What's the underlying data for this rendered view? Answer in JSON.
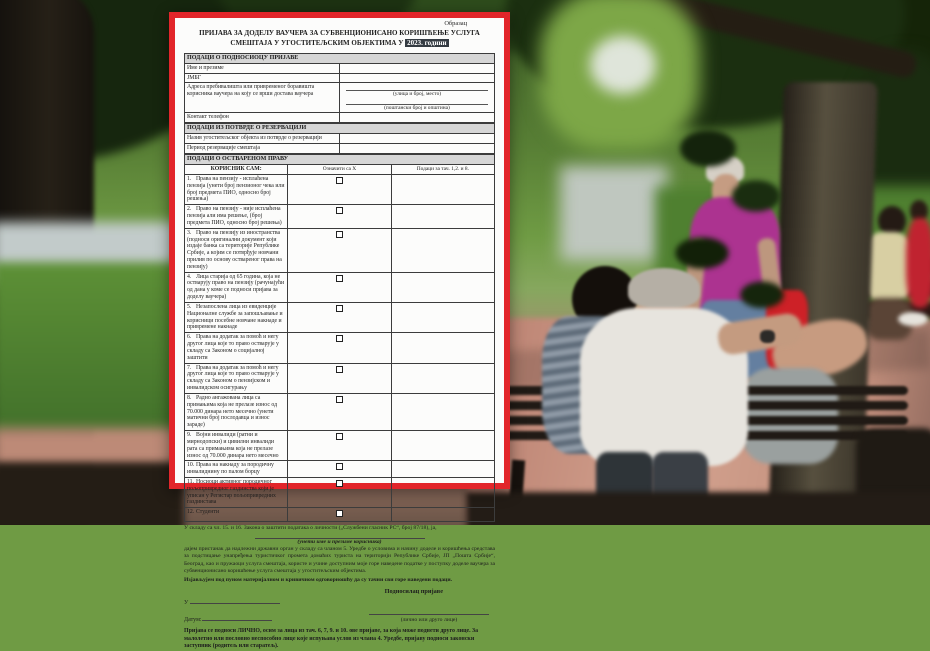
{
  "image_alt": "Park scene with people on benches; a Serbian voucher application form framed in red is overlaid",
  "colors": {
    "form_border_red": "#e2252a",
    "year_highlight_bg": "#343b42",
    "section_header_bg": "#d6d6d6"
  },
  "form": {
    "corner_label": "Образац",
    "title": "ПРИЈАВА ЗА ДОДЕЛУ ВАУЧЕРА ЗА СУБВЕНЦИОНИСАНО КОРИШЋЕЊЕ УСЛУГА СМЕШТАЈА У УГОСТИТЕЉСКИМ ОБЈЕКТИМА У",
    "title_year": "2023. години",
    "applicant": {
      "header": "ПОДАЦИ О ПОДНОСИОЦУ ПРИЈАВЕ",
      "name_label": "Име и презиме",
      "jmbg_label": "ЈМБГ",
      "address_label": "Адреса пребивалишта или привременог боравишта корисника ваучера на коју се врши достава ваучера",
      "address_hint_street": "(улица и број, место)",
      "address_hint_postal": "(поштански број и општина)",
      "phone_label": "Контакт телефон"
    },
    "reservation": {
      "header": "ПОДАЦИ ИЗ ПОТВРДЕ О РЕЗЕРВАЦИЈИ",
      "object_label": "Назив угоститељског објекта из потврде о резервацији",
      "period_label": "Период резервације смештаја"
    },
    "rights": {
      "header": "ПОДАЦИ О ОСТВАРЕНОМ ПРАВУ",
      "col_user": "КОРИСНИК САМ:",
      "col_mark": "Означити са X",
      "col_data": "Подаци за тач. 1,2. и 8.",
      "rows": [
        {
          "num": "1.",
          "text": "Права на пензију - исплаћена пензија (унети број пензионог чека или број предмета ПИО, односно број решења)"
        },
        {
          "num": "2.",
          "text": "Право на пензију - није исплаћена пензија али има решење, (број предмета ПИО, односно број решења)"
        },
        {
          "num": "3.",
          "text": "Право на пензију из иностранства (подноси оригинални документ који издаје банка са територије Републике Србије, а којим се потврђује новчани прилив по основу оствареног права на пензију)"
        },
        {
          "num": "4.",
          "text": "Лица старија од 65 година, која не остварују право на пензију (рачунајући од дана у коме се подноси пријава за доделу ваучера)"
        },
        {
          "num": "5.",
          "text": "Незапослена лица из евиденције Националне службе за запошљавање и корисници посебне новчане накнаде и привремене накнаде"
        },
        {
          "num": "6.",
          "text": "Права на додатак за помоћ и негу другог лица које то право остварује у складу са Законом о социјалној заштити"
        },
        {
          "num": "7.",
          "text": "Права на додатак за помоћ и негу другог лица које то право остварује у складу са Законом о пензијском и инвалидском осигурању"
        },
        {
          "num": "8.",
          "text": "Радно ангажована лица са примањима која не прелазе износ од 70.000 динара нето месечно (унети матични број послодавца и износ зараде)"
        },
        {
          "num": "9.",
          "text": "Војни инвалиди (ратни и мирнодопски) и цивилни инвалиди рата са примањима која не прелазе износ од 70.000 динара нето месечно"
        },
        {
          "num": "10.",
          "text": "Права на накнаду за породичну инвалиднину по палом борцу"
        },
        {
          "num": "11.",
          "text": "Носиоци активног породичног пољопривредног газдинства који је уписан у Регистар пољопривредних газдинстава"
        },
        {
          "num": "12.",
          "text": "Студенти"
        }
      ]
    },
    "consent": {
      "law_line": "У складу са чл. 15. и 16. Закона о заштити података о личности („Службени гласник РС“, број 87/18), ја,",
      "name_caption": "(унети име и презиме корисника)",
      "paragraph": "дајем пристанак да надлежни државни орган у складу са чланом 5. Уредбе о условима и начину доделе и коришћења средстава за подстицање унапређења туристичког промета домаћих туриста на територији Републике Србије, ЈП „Пошта Србије“, Београд, као и пружаоци услуга смештаја, користе и учине доступним моје горе наведене податке у поступку доделе ваучера за субвенционисано коришћење услуга смештаја у угоститељским објектима.",
      "statement": "Изјављујем под пуном материјалном и кривичном одговорношћу да су тачни сви горе наведени подаци."
    },
    "signature": {
      "title": "Подносилац пријаве",
      "place_label": "У",
      "date_label": "Датум:",
      "signer_caption": "(лично или друго лице)"
    },
    "footer_note": "Пријава се подноси ЛИЧНО, осим за лица из тач. 6, 7, 9. и 10. ове пријаве, за која може поднети друго лице. За малолетно или пословно неспособно лице које испуњава услов из члана 4. Уредбе, пријаву подноси законски заступник (родитељ или старатељ)."
  }
}
